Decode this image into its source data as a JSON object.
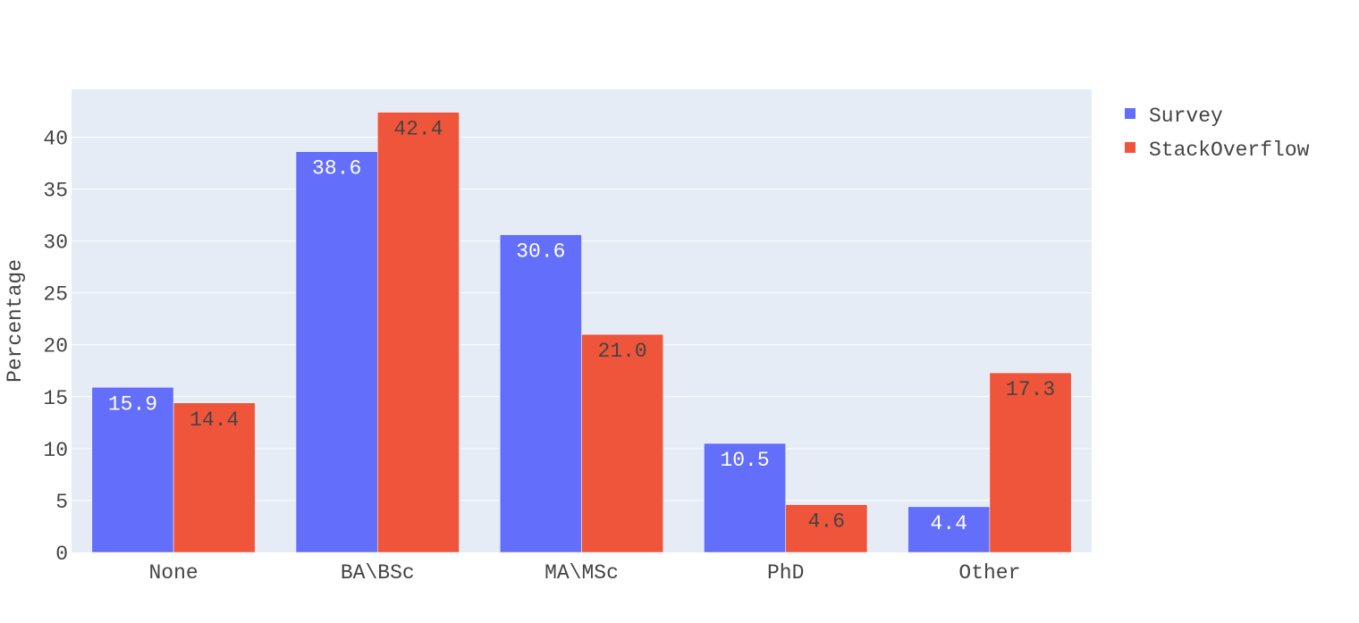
{
  "chart_data": {
    "type": "bar",
    "categories": [
      "None",
      "BA\\BSc",
      "MA\\MSc",
      "PhD",
      "Other"
    ],
    "series": [
      {
        "name": "Survey",
        "values": [
          15.9,
          38.6,
          30.6,
          10.5,
          4.4
        ],
        "labels": [
          "15.9",
          "38.6",
          "30.6",
          "10.5",
          "4.4"
        ],
        "color": "#636efa",
        "label_color": "#ffffff"
      },
      {
        "name": "StackOverflow",
        "values": [
          14.4,
          42.4,
          21.0,
          4.6,
          17.3
        ],
        "labels": [
          "14.4",
          "42.4",
          "21.0",
          "4.6",
          "17.3"
        ],
        "color": "#ef553b",
        "label_color": "#444444"
      }
    ],
    "ylabel": "Percentage",
    "ylim": [
      0,
      44.6
    ],
    "yticks": [
      0,
      5,
      10,
      15,
      20,
      25,
      30,
      35,
      40
    ],
    "grid": true,
    "legend": "top-right",
    "background": "#e5ecf6"
  }
}
